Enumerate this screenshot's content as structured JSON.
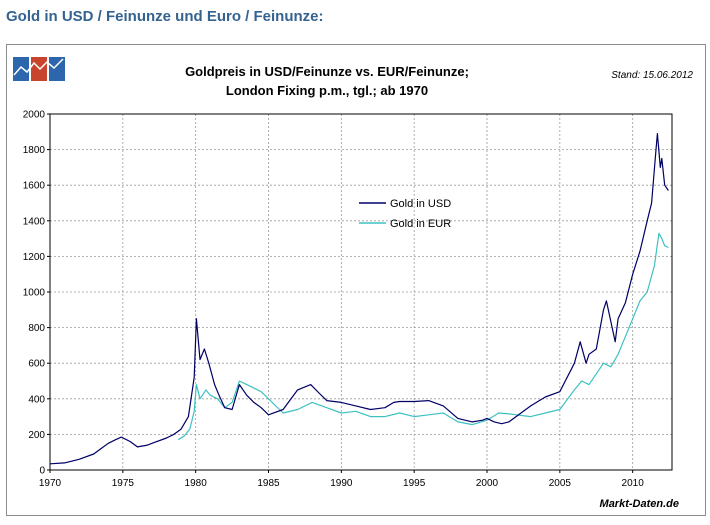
{
  "page_heading": "Gold in USD / Feinunze und Euro / Feinunze:",
  "source_label": "Markt-Daten.de",
  "stand_label": "Stand: 15.06.2012",
  "logo": {
    "icon": "chart-logo-icon",
    "colors": [
      "#2d66ad",
      "#c8442d",
      "#2d66ad"
    ]
  },
  "colors": {
    "usd": "#000066",
    "eur": "#3ec1c1",
    "grid": "#9a9a9a",
    "frame": "#8c8c8c",
    "heading": "#35638f"
  },
  "chart_data": {
    "type": "line",
    "title_lines": [
      "Goldpreis in USD/Feinunze vs. EUR/Feinunze;",
      "London Fixing p.m., tgl.; ab 1970"
    ],
    "xlabel": "",
    "ylabel": "",
    "xlim": [
      1970,
      2012.7
    ],
    "ylim": [
      0,
      2000
    ],
    "x_ticks": [
      "1970",
      "1975",
      "1980",
      "1985",
      "1990",
      "1995",
      "2000",
      "2005",
      "2010"
    ],
    "y_ticks": [
      "0",
      "200",
      "400",
      "600",
      "800",
      "1000",
      "1200",
      "1400",
      "1600",
      "1800",
      "2000"
    ],
    "grid": true,
    "legend_position": "top-center",
    "series": [
      {
        "name": "Gold in USD",
        "color": "#000066",
        "x": [
          1970.0,
          1971.0,
          1972.0,
          1973.0,
          1973.5,
          1974.0,
          1974.5,
          1974.9,
          1975.5,
          1976.0,
          1976.7,
          1977.0,
          1978.0,
          1978.5,
          1979.0,
          1979.5,
          1979.9,
          1980.05,
          1980.3,
          1980.6,
          1980.9,
          1981.3,
          1981.6,
          1982.0,
          1982.5,
          1983.0,
          1983.5,
          1984.0,
          1984.5,
          1985.0,
          1986.0,
          1987.0,
          1987.9,
          1988.5,
          1989.0,
          1990.0,
          1991.0,
          1992.0,
          1993.0,
          1993.6,
          1994.0,
          1995.0,
          1996.0,
          1997.0,
          1998.0,
          1999.0,
          1999.7,
          2000.0,
          2000.5,
          2001.0,
          2001.5,
          2002.0,
          2003.0,
          2004.0,
          2005.0,
          2006.0,
          2006.4,
          2006.8,
          2007.0,
          2007.5,
          2008.0,
          2008.2,
          2008.8,
          2009.0,
          2009.5,
          2010.0,
          2010.5,
          2011.0,
          2011.3,
          2011.6,
          2011.7,
          2011.9,
          2012.0,
          2012.2,
          2012.45
        ],
        "values": [
          35,
          40,
          60,
          90,
          120,
          150,
          170,
          185,
          160,
          130,
          140,
          150,
          180,
          200,
          230,
          300,
          520,
          850,
          620,
          680,
          600,
          480,
          420,
          350,
          340,
          480,
          420,
          380,
          350,
          310,
          340,
          450,
          480,
          430,
          390,
          380,
          360,
          340,
          350,
          380,
          385,
          385,
          390,
          360,
          290,
          270,
          280,
          290,
          270,
          260,
          270,
          300,
          360,
          410,
          440,
          600,
          720,
          600,
          650,
          680,
          900,
          950,
          720,
          850,
          940,
          1100,
          1230,
          1400,
          1500,
          1800,
          1890,
          1700,
          1750,
          1600,
          1570
        ]
      },
      {
        "name": "Gold in EUR",
        "color": "#3ec1c1",
        "x": [
          1978.8,
          1979.2,
          1979.6,
          1979.9,
          1980.05,
          1980.3,
          1980.7,
          1981.0,
          1981.5,
          1982.0,
          1982.5,
          1983.0,
          1983.5,
          1984.0,
          1984.5,
          1985.0,
          1986.0,
          1987.0,
          1988.0,
          1989.0,
          1990.0,
          1991.0,
          1992.0,
          1993.0,
          1994.0,
          1995.0,
          1996.0,
          1997.0,
          1998.0,
          1999.0,
          2000.0,
          2000.8,
          2001.5,
          2002.0,
          2003.0,
          2004.0,
          2005.0,
          2006.0,
          2006.5,
          2007.0,
          2008.0,
          2008.5,
          2009.0,
          2010.0,
          2010.5,
          2011.0,
          2011.5,
          2011.8,
          2012.0,
          2012.2,
          2012.45
        ],
        "values": [
          170,
          190,
          230,
          330,
          480,
          400,
          450,
          420,
          400,
          350,
          380,
          500,
          480,
          460,
          440,
          400,
          320,
          340,
          380,
          350,
          320,
          330,
          300,
          300,
          320,
          300,
          310,
          320,
          270,
          255,
          280,
          320,
          315,
          310,
          300,
          320,
          340,
          450,
          500,
          480,
          600,
          580,
          650,
          850,
          950,
          1000,
          1150,
          1330,
          1300,
          1260,
          1250
        ]
      }
    ]
  }
}
